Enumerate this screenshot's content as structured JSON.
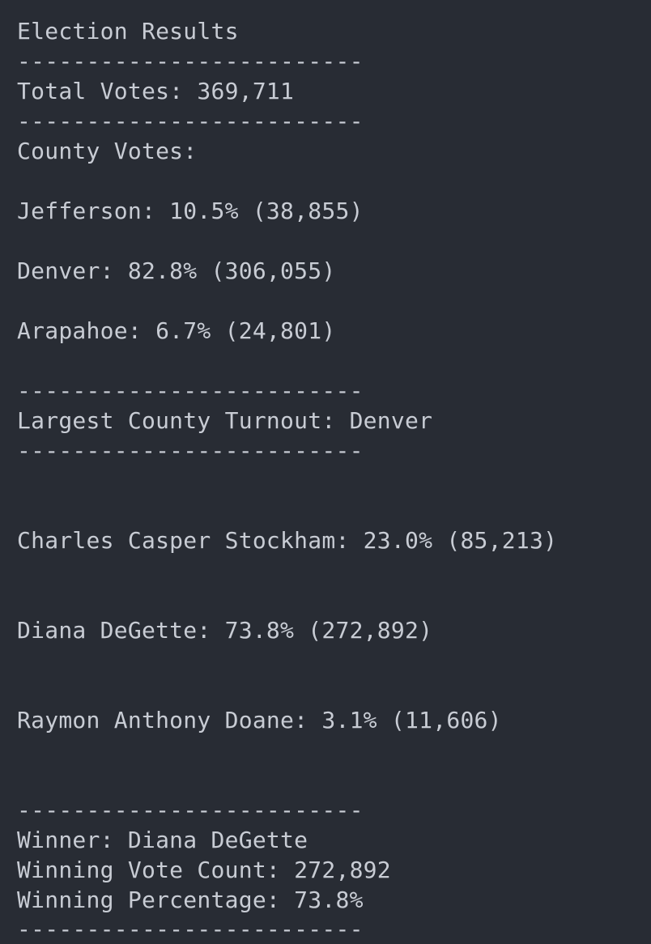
{
  "terminal": {
    "lines": [
      "Election Results",
      "-------------------------",
      "Total Votes: 369,711",
      "-------------------------",
      "County Votes:",
      "Jefferson: 10.5% (38,855)",
      "Denver: 82.8% (306,055)",
      "Arapahoe: 6.7% (24,801)",
      "-------------------------",
      "Largest County Turnout: Denver",
      "-------------------------",
      "Charles Casper Stockham: 23.0% (85,213)",
      "Diana DeGette: 73.8% (272,892)",
      "Raymon Anthony Doane: 3.1% (11,606)",
      "-------------------------",
      "Winner: Diana DeGette",
      "Winning Vote Count: 272,892",
      "Winning Percentage: 73.8%",
      "-------------------------"
    ]
  },
  "colors": {
    "background": "#282c34",
    "text": "#c8ccd4"
  }
}
